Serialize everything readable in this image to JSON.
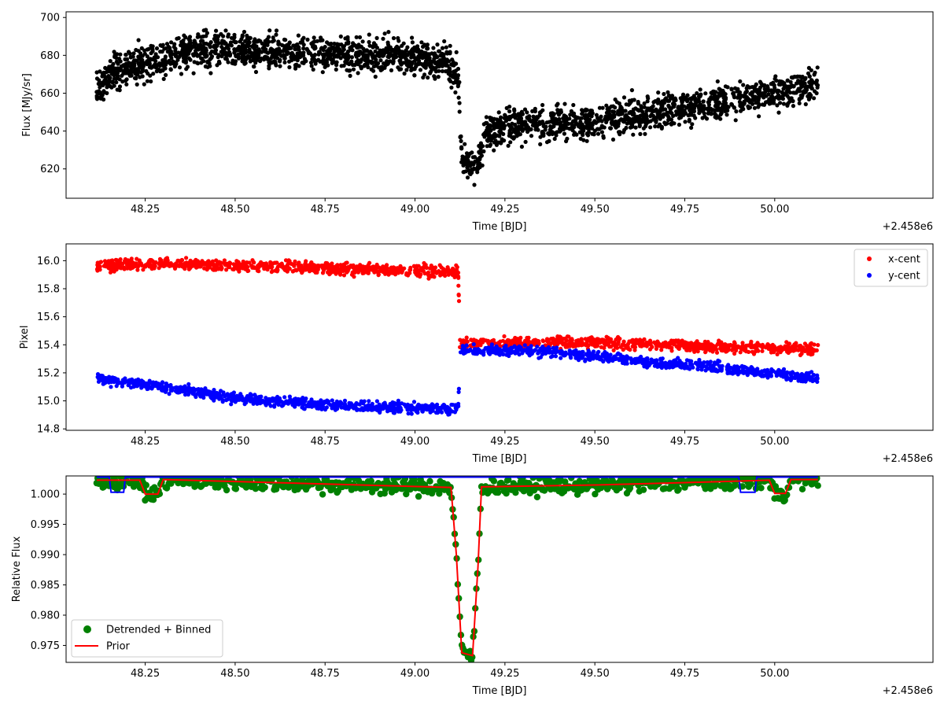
{
  "chart_data": [
    {
      "type": "scatter",
      "title": "",
      "xlabel": "Time [BJD]",
      "ylabel": "Flux [MJy/sr]",
      "x_offset_label": "+2.458e6",
      "xlim": [
        48.03,
        50.44
      ],
      "ylim": [
        604.5,
        703
      ],
      "x_ticks": [
        48.25,
        48.5,
        48.75,
        49.0,
        49.25,
        49.5,
        49.75,
        50.0
      ],
      "x_tick_labels": [
        "48.25",
        "48.50",
        "48.75",
        "49.00",
        "49.25",
        "49.50",
        "49.75",
        "50.00"
      ],
      "y_ticks": [
        620,
        640,
        660,
        680,
        700
      ],
      "y_tick_labels": [
        "620",
        "640",
        "660",
        "680",
        "700"
      ],
      "series": [
        {
          "color": "#000000",
          "band_center": [
            [
              48.115,
              663
            ],
            [
              48.15,
              670
            ],
            [
              48.25,
              676
            ],
            [
              48.4,
              683
            ],
            [
              48.5,
              683
            ],
            [
              48.75,
              681
            ],
            [
              49.0,
              679
            ],
            [
              49.09,
              677
            ],
            [
              49.12,
              668
            ],
            [
              49.13,
              625
            ],
            [
              49.17,
              620
            ],
            [
              49.2,
              640
            ],
            [
              49.25,
              643
            ],
            [
              49.5,
              645
            ],
            [
              49.75,
              652
            ],
            [
              50.0,
              660
            ],
            [
              50.12,
              664
            ]
          ],
          "band_halfwidth": 10
        }
      ]
    },
    {
      "type": "scatter",
      "title": "",
      "xlabel": "Time [BJD]",
      "ylabel": "Pixel",
      "x_offset_label": "+2.458e6",
      "xlim": [
        48.03,
        50.44
      ],
      "ylim": [
        14.79,
        16.12
      ],
      "x_ticks": [
        48.25,
        48.5,
        48.75,
        49.0,
        49.25,
        49.5,
        49.75,
        50.0
      ],
      "x_tick_labels": [
        "48.25",
        "48.50",
        "48.75",
        "49.00",
        "49.25",
        "49.50",
        "49.75",
        "50.00"
      ],
      "y_ticks": [
        14.8,
        15.0,
        15.2,
        15.4,
        15.6,
        15.8,
        16.0
      ],
      "y_tick_labels": [
        "14.8",
        "15.0",
        "15.2",
        "15.4",
        "15.6",
        "15.8",
        "16.0"
      ],
      "legend_position": "top-right",
      "series": [
        {
          "name": "x-cent",
          "color": "#ff0000",
          "band_center": [
            [
              48.115,
              15.96
            ],
            [
              48.3,
              15.98
            ],
            [
              48.75,
              15.95
            ],
            [
              49.12,
              15.92
            ],
            [
              49.125,
              15.41
            ],
            [
              49.5,
              15.42
            ],
            [
              49.75,
              15.39
            ],
            [
              50.12,
              15.37
            ]
          ],
          "band_halfwidth": 0.045
        },
        {
          "name": "y-cent",
          "color": "#0000ff",
          "band_center": [
            [
              48.115,
              15.16
            ],
            [
              48.25,
              15.12
            ],
            [
              48.5,
              15.02
            ],
            [
              48.75,
              14.97
            ],
            [
              49.12,
              14.94
            ],
            [
              49.125,
              15.36
            ],
            [
              49.35,
              15.36
            ],
            [
              49.6,
              15.29
            ],
            [
              49.8,
              15.25
            ],
            [
              50.12,
              15.16
            ]
          ],
          "band_halfwidth": 0.04
        }
      ]
    },
    {
      "type": "line",
      "title": "",
      "xlabel": "Time [BJD]",
      "ylabel": "Relative Flux",
      "x_offset_label": "+2.458e6",
      "xlim": [
        48.03,
        50.44
      ],
      "ylim": [
        0.9722,
        1.003
      ],
      "x_ticks": [
        48.25,
        48.5,
        48.75,
        49.0,
        49.25,
        49.5,
        49.75,
        50.0
      ],
      "x_tick_labels": [
        "48.25",
        "48.50",
        "48.75",
        "49.00",
        "49.25",
        "49.50",
        "49.75",
        "50.00"
      ],
      "y_ticks": [
        0.975,
        0.98,
        0.985,
        0.99,
        0.995,
        1.0
      ],
      "y_tick_labels": [
        "0.975",
        "0.980",
        "0.985",
        "0.990",
        "0.995",
        "1.000"
      ],
      "legend_position": "lower-left",
      "series": [
        {
          "name": "Detrended + Binned",
          "color": "#008000",
          "marker": "circle"
        },
        {
          "name": "Prior",
          "color": "#ff0000",
          "values": [
            [
              48.115,
              1.0023
            ],
            [
              48.235,
              1.0023
            ],
            [
              48.25,
              1.0
            ],
            [
              48.285,
              1.0
            ],
            [
              48.3,
              1.0024
            ],
            [
              49.1,
              1.0011
            ],
            [
              49.115,
              0.99
            ],
            [
              49.13,
              0.9738
            ],
            [
              49.16,
              0.9733
            ],
            [
              49.175,
              0.988
            ],
            [
              49.185,
              1.0012
            ],
            [
              49.5,
              1.0015
            ],
            [
              49.75,
              1.0019
            ],
            [
              49.985,
              1.0023
            ],
            [
              50.0,
              1.0001
            ],
            [
              50.03,
              1.0001
            ],
            [
              50.045,
              1.0024
            ],
            [
              50.12,
              1.0024
            ]
          ]
        },
        {
          "color": "#0000ff",
          "values": [
            [
              48.115,
              1.0028
            ],
            [
              48.15,
              1.0028
            ],
            [
              48.155,
              1.0003
            ],
            [
              48.19,
              1.0003
            ],
            [
              48.195,
              1.0028
            ],
            [
              49.9,
              1.0028
            ],
            [
              49.905,
              1.0003
            ],
            [
              49.945,
              1.0003
            ],
            [
              49.95,
              1.0028
            ],
            [
              50.12,
              1.0028
            ]
          ]
        }
      ]
    }
  ]
}
